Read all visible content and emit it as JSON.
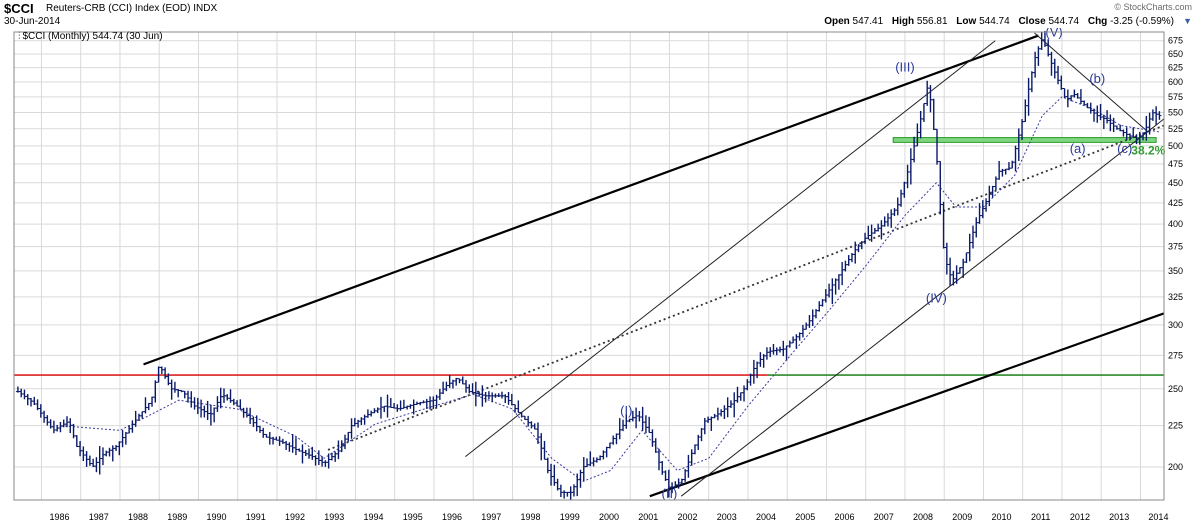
{
  "header": {
    "symbol": "$CCI",
    "name": "Reuters-CRB (CCI) Index (EOD)",
    "exchange": "INDX",
    "date": "30-Jun-2014",
    "copyright": "© StockCharts.com",
    "open_label": "Open",
    "open": "547.41",
    "high_label": "High",
    "high": "556.81",
    "low_label": "Low",
    "low": "544.74",
    "close_label": "Close",
    "close": "544.74",
    "chg_label": "Chg",
    "chg": "-3.25 (-0.59%)",
    "arrow_icon": "down-triangle-icon"
  },
  "legend": {
    "text": "$CCI (Monthly) 544.74 (30 Jun)"
  },
  "chart_data": {
    "type": "ohlc-bar",
    "title": "$CCI Reuters-CRB (CCI) Index (EOD)",
    "xlim": [
      1985.3,
      2014.6
    ],
    "ylim": [
      182,
      692
    ],
    "y_scale": "log",
    "grid": true,
    "y_ticks": [
      200,
      225,
      250,
      275,
      300,
      325,
      350,
      375,
      400,
      425,
      450,
      475,
      500,
      525,
      550,
      575,
      600,
      625,
      650,
      675
    ],
    "x_ticks": [
      1986,
      1987,
      1988,
      1989,
      1990,
      1991,
      1992,
      1993,
      1994,
      1995,
      1996,
      1997,
      1998,
      1999,
      2000,
      2001,
      2002,
      2003,
      2004,
      2005,
      2006,
      2007,
      2008,
      2009,
      2010,
      2011,
      2012,
      2013,
      2014
    ],
    "price_path": [
      [
        1985.4,
        248
      ],
      [
        1985.8,
        240
      ],
      [
        1986.3,
        222
      ],
      [
        1986.7,
        228
      ],
      [
        1986.9,
        212
      ],
      [
        1987.3,
        200
      ],
      [
        1987.6,
        208
      ],
      [
        1987.9,
        212
      ],
      [
        1988.2,
        222
      ],
      [
        1988.5,
        232
      ],
      [
        1988.8,
        242
      ],
      [
        1989.0,
        268
      ],
      [
        1989.3,
        250
      ],
      [
        1989.6,
        248
      ],
      [
        1989.9,
        238
      ],
      [
        1990.3,
        232
      ],
      [
        1990.6,
        246
      ],
      [
        1990.9,
        240
      ],
      [
        1991.3,
        230
      ],
      [
        1991.7,
        218
      ],
      [
        1992.1,
        215
      ],
      [
        1992.5,
        210
      ],
      [
        1992.9,
        206
      ],
      [
        1993.2,
        202
      ],
      [
        1993.6,
        210
      ],
      [
        1993.9,
        225
      ],
      [
        1994.3,
        232
      ],
      [
        1994.7,
        238
      ],
      [
        1995.1,
        236
      ],
      [
        1995.6,
        240
      ],
      [
        1996.0,
        242
      ],
      [
        1996.3,
        252
      ],
      [
        1996.6,
        258
      ],
      [
        1996.9,
        248
      ],
      [
        1997.3,
        245
      ],
      [
        1997.8,
        245
      ],
      [
        1998.2,
        232
      ],
      [
        1998.6,
        222
      ],
      [
        1998.9,
        198
      ],
      [
        1999.2,
        186
      ],
      [
        1999.5,
        186
      ],
      [
        1999.8,
        200
      ],
      [
        2000.2,
        205
      ],
      [
        2000.6,
        218
      ],
      [
        2000.9,
        228
      ],
      [
        2001.2,
        232
      ],
      [
        2001.5,
        220
      ],
      [
        2001.8,
        198
      ],
      [
        2002.0,
        188
      ],
      [
        2002.3,
        192
      ],
      [
        2002.6,
        210
      ],
      [
        2002.9,
        228
      ],
      [
        2003.2,
        232
      ],
      [
        2003.6,
        240
      ],
      [
        2003.9,
        250
      ],
      [
        2004.2,
        268
      ],
      [
        2004.5,
        278
      ],
      [
        2004.9,
        280
      ],
      [
        2005.3,
        292
      ],
      [
        2005.6,
        305
      ],
      [
        2005.9,
        322
      ],
      [
        2006.3,
        345
      ],
      [
        2006.7,
        370
      ],
      [
        2007.0,
        385
      ],
      [
        2007.4,
        398
      ],
      [
        2007.8,
        420
      ],
      [
        2008.1,
        470
      ],
      [
        2008.4,
        540
      ],
      [
        2008.6,
        600
      ],
      [
        2008.8,
        490
      ],
      [
        2009.0,
        365
      ],
      [
        2009.2,
        340
      ],
      [
        2009.5,
        360
      ],
      [
        2009.8,
        400
      ],
      [
        2010.1,
        430
      ],
      [
        2010.4,
        465
      ],
      [
        2010.7,
        470
      ],
      [
        2011.0,
        540
      ],
      [
        2011.3,
        640
      ],
      [
        2011.5,
        680
      ],
      [
        2011.8,
        620
      ],
      [
        2012.1,
        570
      ],
      [
        2012.3,
        580
      ],
      [
        2012.6,
        560
      ],
      [
        2012.9,
        545
      ],
      [
        2013.1,
        540
      ],
      [
        2013.4,
        525
      ],
      [
        2013.7,
        515
      ],
      [
        2013.9,
        510
      ],
      [
        2014.1,
        520
      ],
      [
        2014.3,
        550
      ],
      [
        2014.5,
        544.74
      ]
    ],
    "moving_average_path": [
      [
        1986.5,
        225
      ],
      [
        1988.0,
        222
      ],
      [
        1989.5,
        242
      ],
      [
        1991.0,
        236
      ],
      [
        1992.5,
        218
      ],
      [
        1993.2,
        205
      ],
      [
        1994.5,
        226
      ],
      [
        1996.0,
        238
      ],
      [
        1997.0,
        246
      ],
      [
        1998.0,
        236
      ],
      [
        1999.0,
        205
      ],
      [
        1999.8,
        192
      ],
      [
        2000.5,
        198
      ],
      [
        2001.3,
        222
      ],
      [
        2002.2,
        198
      ],
      [
        2003.0,
        205
      ],
      [
        2004.0,
        238
      ],
      [
        2005.0,
        272
      ],
      [
        2006.0,
        310
      ],
      [
        2007.0,
        355
      ],
      [
        2008.0,
        410
      ],
      [
        2008.8,
        450
      ],
      [
        2009.3,
        420
      ],
      [
        2010.0,
        420
      ],
      [
        2010.8,
        460
      ],
      [
        2011.5,
        545
      ],
      [
        2012.0,
        575
      ],
      [
        2012.8,
        555
      ],
      [
        2013.5,
        530
      ],
      [
        2014.5,
        520
      ]
    ],
    "horizontal_lines": [
      {
        "color": "#dd2222",
        "value": 260,
        "x_start": 1985.3,
        "x_end": 2004.5
      },
      {
        "color": "#2c8c2c",
        "value": 260,
        "x_start": 2004.5,
        "x_end": 2014.6
      }
    ],
    "support_zone": {
      "color": "#7fd67f",
      "low": 505,
      "high": 512,
      "x_start": 2007.7,
      "x_end": 2014.4
    },
    "trendlines": [
      {
        "from": [
          1988.6,
          268
        ],
        "to": [
          2011.4,
          685
        ],
        "style": "thick"
      },
      {
        "from": [
          2001.5,
          184
        ],
        "to": [
          2014.6,
          310
        ],
        "style": "thick"
      },
      {
        "from": [
          2002.3,
          184
        ],
        "to": [
          2014.6,
          540
        ],
        "style": "thin"
      },
      {
        "from": [
          1996.8,
          206
        ],
        "to": [
          2010.3,
          675
        ],
        "style": "thin"
      },
      {
        "from": [
          2011.3,
          690
        ],
        "to": [
          2014.2,
          520
        ],
        "style": "thin"
      },
      {
        "from": [
          1993.3,
          210
        ],
        "to": [
          2014.6,
          530
        ],
        "style": "dotted"
      }
    ],
    "annotations": [
      {
        "text": "(I)",
        "x": 2000.9,
        "y": 232
      },
      {
        "text": "(II)",
        "x": 2002.0,
        "y": 183
      },
      {
        "text": "(III)",
        "x": 2008.0,
        "y": 618
      },
      {
        "text": "(IV)",
        "x": 2008.8,
        "y": 320
      },
      {
        "text": "(V)",
        "x": 2011.8,
        "y": 683
      },
      {
        "text": "(a)",
        "x": 2012.4,
        "y": 490
      },
      {
        "text": "(b)",
        "x": 2012.9,
        "y": 598
      },
      {
        "text": "(c)",
        "x": 2013.6,
        "y": 490
      }
    ],
    "fibonacci_label": {
      "text": "38.2%",
      "x": 2014.2,
      "y": 488
    }
  }
}
